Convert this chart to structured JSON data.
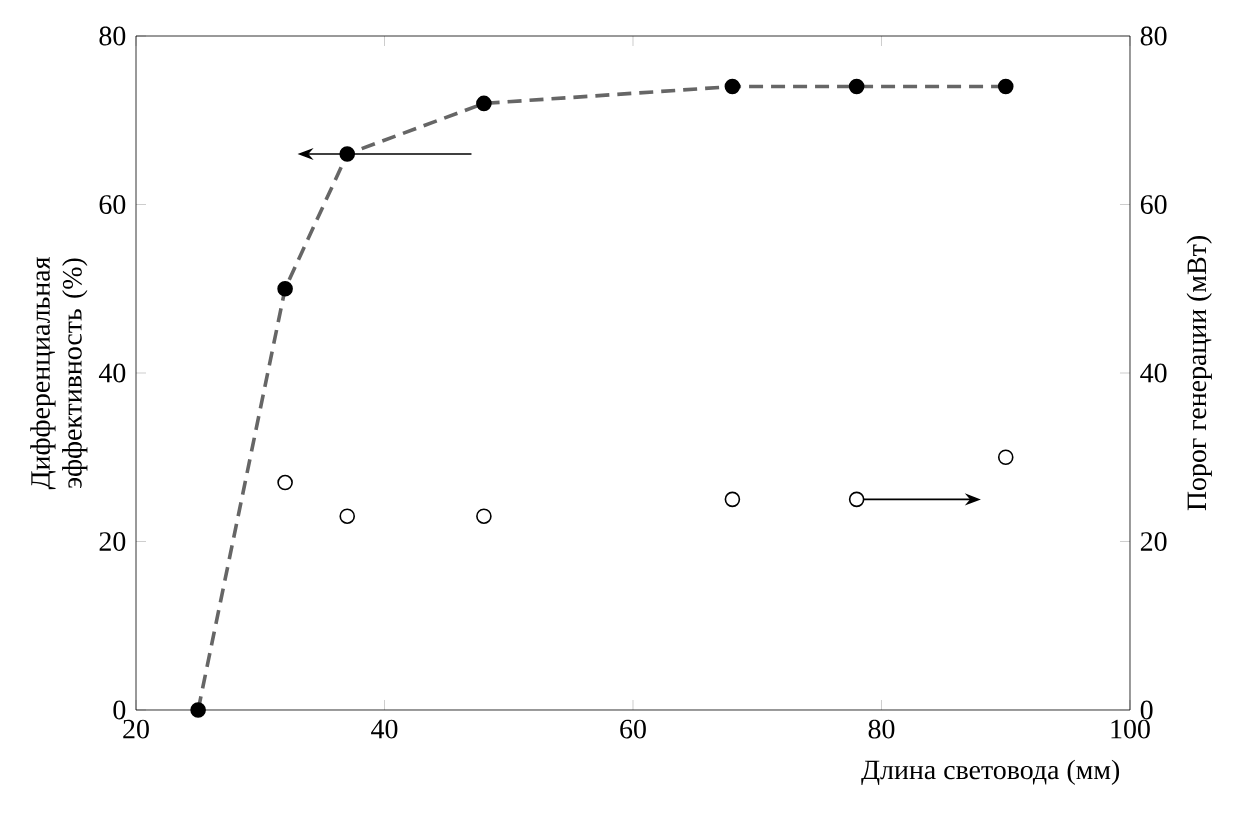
{
  "chart_data": {
    "type": "scatter",
    "xlabel": "Длина световода (мм)",
    "ylabel": "Дифференциальная эффективность (%)",
    "y2label": "Порог генерации (мВт)",
    "xlim": [
      20,
      100
    ],
    "xticks": [
      20,
      40,
      60,
      80,
      100
    ],
    "ylim": [
      0,
      80
    ],
    "yticks": [
      0,
      20,
      40,
      60,
      80
    ],
    "y2lim": [
      0,
      80
    ],
    "y2ticks": [
      0,
      20,
      40,
      60,
      80
    ],
    "grid": false,
    "marker": "circle",
    "series": [
      {
        "type": "line",
        "x": [
          25,
          32,
          37,
          48,
          68,
          90
        ],
        "values": [
          0,
          50,
          66,
          72,
          74,
          74
        ],
        "color": "#666666",
        "line_style": "dashed",
        "marker": "none"
      },
      {
        "x": [
          25,
          32,
          37,
          48,
          68,
          78,
          90
        ],
        "values": [
          0,
          50,
          66,
          72,
          74,
          74,
          74
        ],
        "color": "#000000"
      },
      {
        "axis": "y2",
        "x": [
          32,
          37,
          48,
          68,
          78,
          90
        ],
        "values": [
          27,
          23,
          23,
          25,
          25,
          30
        ],
        "color": "#000000"
      }
    ]
  }
}
